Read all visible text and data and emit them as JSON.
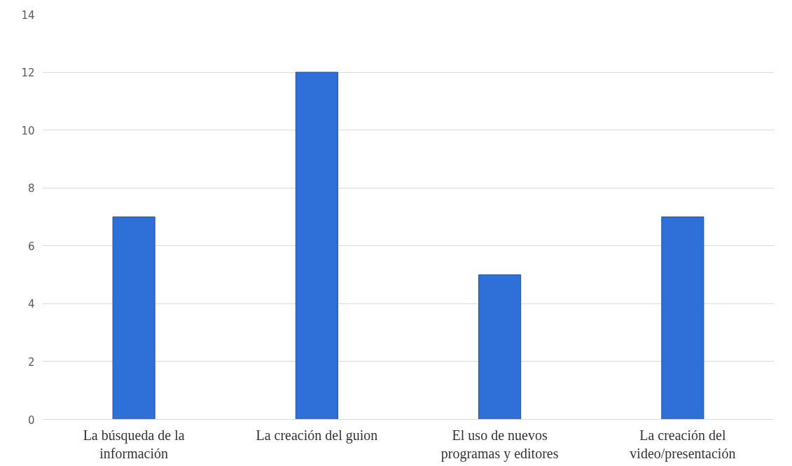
{
  "chart_data": {
    "type": "bar",
    "categories": [
      "La búsqueda de la información",
      "La creación del guion",
      "El uso de nuevos programas y editores",
      "La creación del video/presentación"
    ],
    "values": [
      7,
      12,
      5,
      7
    ],
    "color": "#2f6fd8",
    "ylim": [
      0,
      14
    ],
    "yticks": [
      0,
      2,
      4,
      6,
      8,
      10,
      12,
      14
    ],
    "grid": "y"
  }
}
